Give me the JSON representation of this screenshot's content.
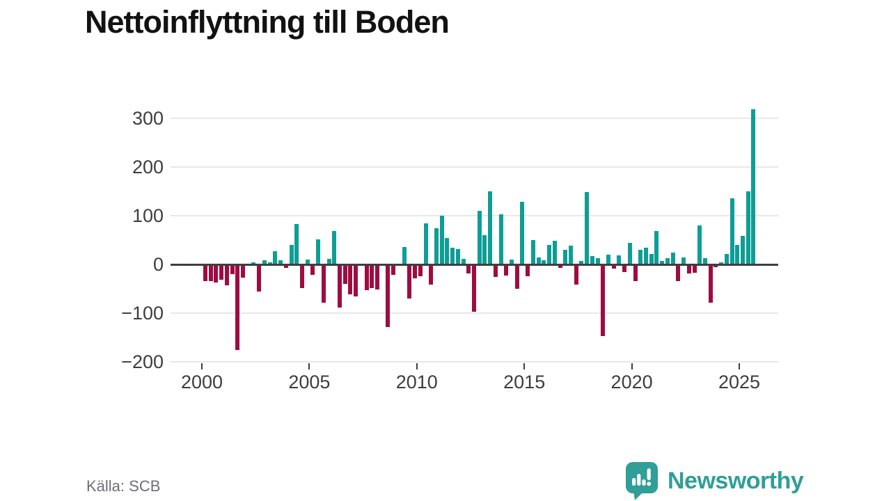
{
  "header": {
    "title": "Nettoinflyttning till Boden"
  },
  "footer": {
    "source_label": "Källa: SCB",
    "brand_name": "Newsworthy"
  },
  "colors": {
    "positive": "#0d9e95",
    "negative": "#9f0c42",
    "brand_teal": "#2f9f97",
    "grid": "#e8e8e8",
    "zero_line": "#3f3f3f",
    "axis_text": "#3d3d3d",
    "title_text": "#121212",
    "source_text": "#6e6e78"
  },
  "chart_data": {
    "type": "bar",
    "title": "Nettoinflyttning till Boden",
    "frequency": "quarterly",
    "x_start_year": 2000,
    "bars_per_year": 4,
    "x_ticks": [
      2000,
      2005,
      2010,
      2015,
      2020,
      2025
    ],
    "x_tick_labels": [
      "2000",
      "2005",
      "2010",
      "2015",
      "2020",
      "2025"
    ],
    "y_ticks": [
      300,
      200,
      100,
      0,
      -100,
      -200
    ],
    "y_tick_labels": [
      "300",
      "200",
      "100",
      "0",
      "−100",
      "−200"
    ],
    "ylim": [
      -210,
      340
    ],
    "grid": "horizontal",
    "legend": "none",
    "values": [
      -34,
      -34,
      -37,
      -32,
      -43,
      -20,
      -175,
      -27,
      0,
      4,
      -55,
      8,
      5,
      27,
      8,
      -7,
      40,
      83,
      -48,
      10,
      -22,
      52,
      -79,
      11,
      69,
      -88,
      -40,
      -61,
      -65,
      0,
      -53,
      -48,
      -51,
      0,
      -129,
      -21,
      0,
      36,
      -70,
      -28,
      -24,
      85,
      -42,
      75,
      100,
      55,
      35,
      31,
      12,
      -19,
      -97,
      110,
      60,
      150,
      -26,
      103,
      -23,
      10,
      -50,
      128,
      -24,
      50,
      14,
      9,
      40,
      48,
      -7,
      30,
      38,
      -41,
      7,
      149,
      17,
      13,
      -147,
      20,
      -9,
      18,
      -15,
      45,
      -34,
      30,
      35,
      22,
      68,
      7,
      13,
      24,
      -34,
      15,
      -18,
      -17,
      80,
      13,
      -79,
      -6,
      4,
      21,
      136,
      40,
      58,
      150,
      318
    ]
  }
}
